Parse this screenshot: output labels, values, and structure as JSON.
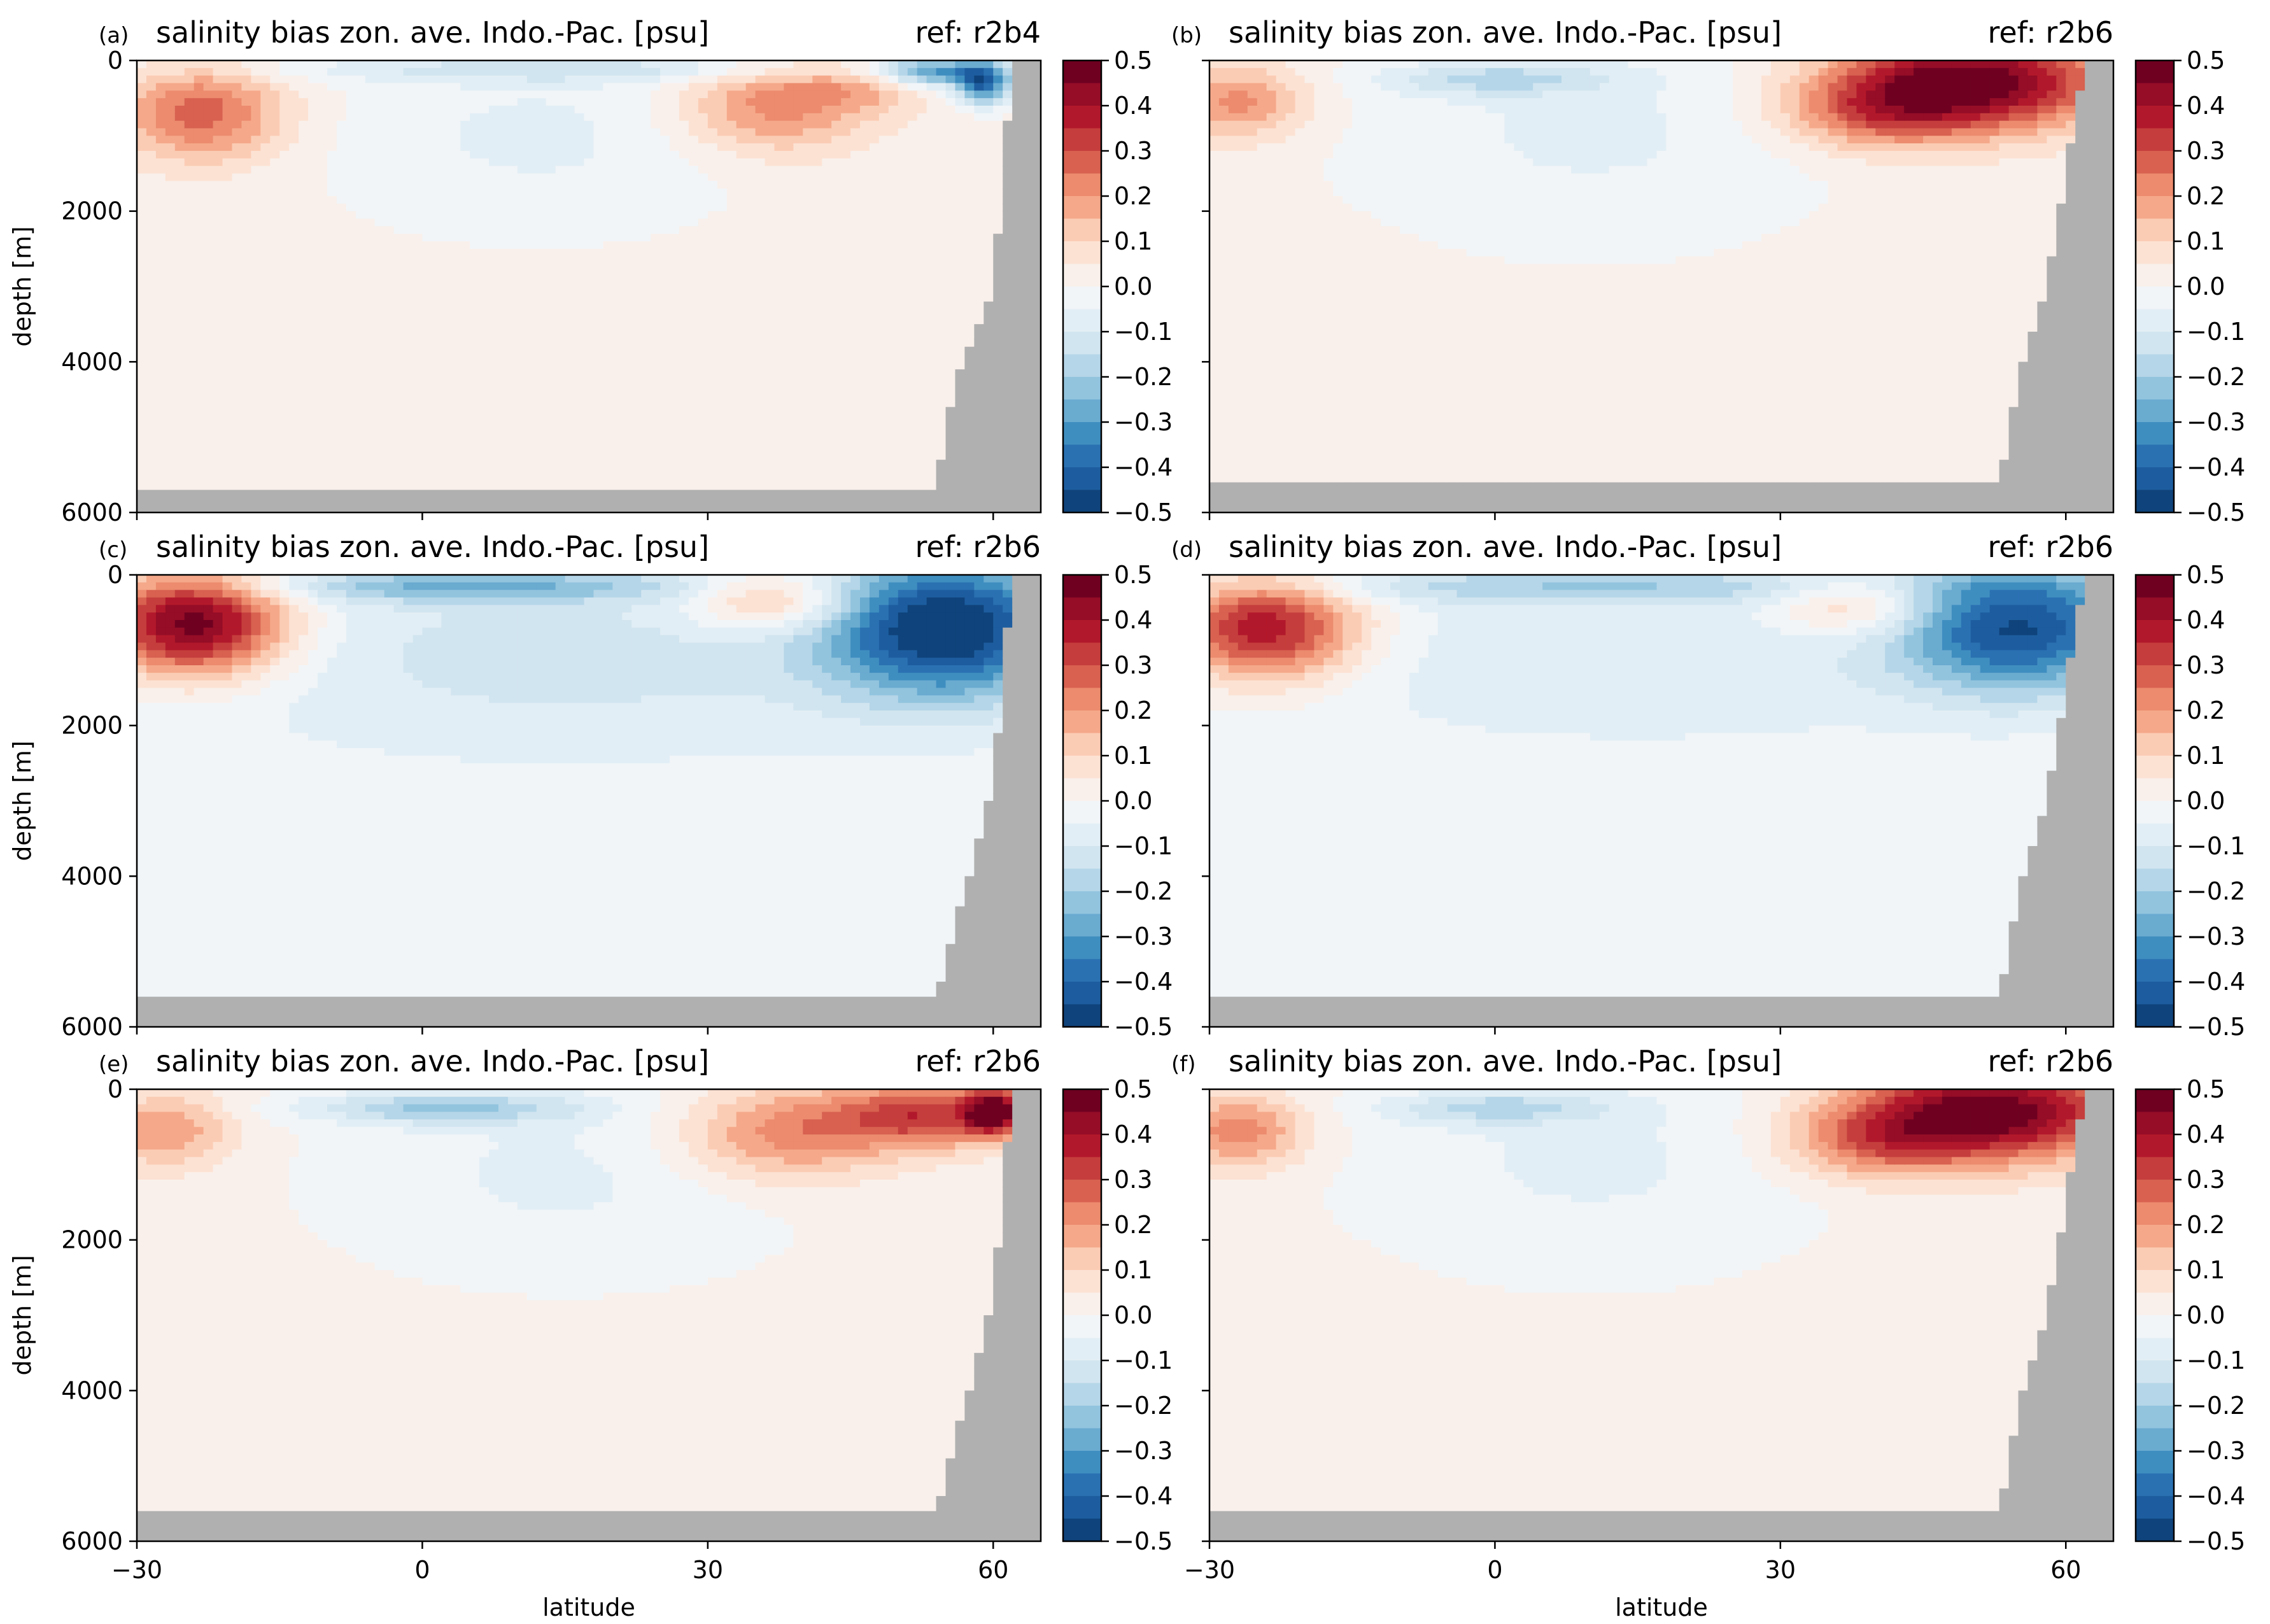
{
  "figure": {
    "panels": [
      {
        "label": "(a)",
        "title": "salinity bias zon. ave. Indo.-Pac. [psu]",
        "ref": "ref: r2b4"
      },
      {
        "label": "(b)",
        "title": "salinity bias zon. ave. Indo.-Pac. [psu]",
        "ref": "ref: r2b6"
      },
      {
        "label": "(c)",
        "title": "salinity bias zon. ave. Indo.-Pac. [psu]",
        "ref": "ref: r2b6"
      },
      {
        "label": "(d)",
        "title": "salinity bias zon. ave. Indo.-Pac. [psu]",
        "ref": "ref: r2b6"
      },
      {
        "label": "(e)",
        "title": "salinity bias zon. ave. Indo.-Pac. [psu]",
        "ref": "ref: r2b6"
      },
      {
        "label": "(f)",
        "title": "salinity bias zon. ave. Indo.-Pac. [psu]",
        "ref": "ref: r2b6"
      }
    ],
    "ylabel": "depth [m]",
    "xlabel": "latitude",
    "xticks": [
      "−30",
      "0",
      "30",
      "60"
    ],
    "yticks": [
      "0",
      "2000",
      "4000",
      "6000"
    ],
    "colorbar_ticks": [
      "0.5",
      "0.4",
      "0.3",
      "0.2",
      "0.1",
      "0.0",
      "−0.1",
      "−0.2",
      "−0.3",
      "−0.4",
      "−0.5"
    ],
    "land_color": "#b0b0b0"
  },
  "chart_data": {
    "type": "heatmap",
    "colormap": "RdBu_r",
    "levels": [
      -0.5,
      -0.45,
      -0.4,
      -0.35,
      -0.3,
      -0.25,
      -0.2,
      -0.15,
      -0.1,
      -0.05,
      0.0,
      0.05,
      0.1,
      0.15,
      0.2,
      0.25,
      0.3,
      0.35,
      0.4,
      0.45,
      0.5
    ],
    "level_colors": [
      "#0f437b",
      "#1d5d9f",
      "#2a71b2",
      "#3f8ec0",
      "#6aabd0",
      "#92c4de",
      "#b5d6e8",
      "#d1e5f0",
      "#e2eef5",
      "#f1f5f8",
      "#f9f0eb",
      "#fce2d3",
      "#fbccb4",
      "#f5a98a",
      "#ec8b6e",
      "#d86150",
      "#c53e3d",
      "#b2182b",
      "#950d27",
      "#6f0020"
    ],
    "xlim": [
      -30,
      65
    ],
    "ylim": [
      6000,
      0
    ],
    "x_unit": "latitude",
    "y_unit": "depth [m]",
    "panels": [
      {
        "label": "(a)",
        "land": {
          "bottom_depth": 5700,
          "coast": [
            [
              54,
              5700
            ],
            [
              56,
              4200
            ],
            [
              60,
              3000
            ],
            [
              62,
              0
            ]
          ]
        },
        "features": [
          {
            "x": -23,
            "y": 700,
            "sx": 6,
            "sy": 450,
            "v": 0.26
          },
          {
            "x": 37,
            "y": 600,
            "sx": 7,
            "sy": 450,
            "v": 0.22
          },
          {
            "x": 47,
            "y": 300,
            "sx": 5,
            "sy": 250,
            "v": 0.12
          },
          {
            "x": 12,
            "y": 1000,
            "sx": 16,
            "sy": 900,
            "v": -0.08
          },
          {
            "x": 20,
            "y": 120,
            "sx": 28,
            "sy": 120,
            "v": -0.12
          },
          {
            "x": 53,
            "y": 150,
            "sx": 4,
            "sy": 150,
            "v": -0.3
          },
          {
            "x": 59,
            "y": 300,
            "sx": 2,
            "sy": 200,
            "v": -0.4
          }
        ],
        "background": 0.02
      },
      {
        "label": "(b)",
        "land": {
          "bottom_depth": 5600,
          "coast": [
            [
              53,
              5600
            ],
            [
              55,
              4200
            ],
            [
              58,
              3000
            ],
            [
              62,
              0
            ]
          ]
        },
        "features": [
          {
            "x": -27,
            "y": 550,
            "sx": 5,
            "sy": 350,
            "v": 0.2
          },
          {
            "x": 50,
            "y": 280,
            "sx": 10,
            "sy": 450,
            "v": 0.48
          },
          {
            "x": 40,
            "y": 700,
            "sx": 7,
            "sy": 350,
            "v": 0.2
          },
          {
            "x": 10,
            "y": 900,
            "sx": 18,
            "sy": 1100,
            "v": -0.08
          },
          {
            "x": 0,
            "y": 250,
            "sx": 8,
            "sy": 150,
            "v": -0.15
          }
        ],
        "background": 0.02
      },
      {
        "label": "(c)",
        "land": {
          "bottom_depth": 5600,
          "coast": [
            [
              54,
              5600
            ],
            [
              57,
              4200
            ],
            [
              60,
              2800
            ],
            [
              62,
              0
            ]
          ]
        },
        "features": [
          {
            "x": -24,
            "y": 650,
            "sx": 7,
            "sy": 500,
            "v": 0.52
          },
          {
            "x": 37,
            "y": 350,
            "sx": 6,
            "sy": 280,
            "v": 0.22
          },
          {
            "x": 55,
            "y": 700,
            "sx": 9,
            "sy": 650,
            "v": -0.48
          },
          {
            "x": 5,
            "y": 150,
            "sx": 16,
            "sy": 150,
            "v": -0.2
          },
          {
            "x": 15,
            "y": 1100,
            "sx": 28,
            "sy": 900,
            "v": -0.1
          }
        ],
        "background": -0.02
      },
      {
        "label": "(d)",
        "land": {
          "bottom_depth": 5600,
          "coast": [
            [
              53,
              5600
            ],
            [
              55,
              4200
            ],
            [
              58,
              3000
            ],
            [
              62,
              0
            ]
          ]
        },
        "features": [
          {
            "x": -24,
            "y": 700,
            "sx": 7,
            "sy": 500,
            "v": 0.42
          },
          {
            "x": 38,
            "y": 400,
            "sx": 6,
            "sy": 300,
            "v": 0.18
          },
          {
            "x": 55,
            "y": 700,
            "sx": 9,
            "sy": 600,
            "v": -0.42
          },
          {
            "x": 10,
            "y": 150,
            "sx": 25,
            "sy": 160,
            "v": -0.15
          },
          {
            "x": 15,
            "y": 1100,
            "sx": 30,
            "sy": 900,
            "v": -0.08
          }
        ],
        "background": -0.01
      },
      {
        "label": "(e)",
        "land": {
          "bottom_depth": 5600,
          "coast": [
            [
              54,
              5600
            ],
            [
              57,
              4200
            ],
            [
              60,
              2800
            ],
            [
              62,
              0
            ]
          ]
        },
        "features": [
          {
            "x": -27,
            "y": 550,
            "sx": 5,
            "sy": 350,
            "v": 0.18
          },
          {
            "x": 38,
            "y": 600,
            "sx": 8,
            "sy": 450,
            "v": 0.22
          },
          {
            "x": 53,
            "y": 350,
            "sx": 7,
            "sy": 300,
            "v": 0.3
          },
          {
            "x": 60,
            "y": 300,
            "sx": 2,
            "sy": 200,
            "v": 0.42
          },
          {
            "x": 15,
            "y": 1100,
            "sx": 18,
            "sy": 1000,
            "v": -0.08
          },
          {
            "x": 2,
            "y": 250,
            "sx": 10,
            "sy": 150,
            "v": -0.2
          }
        ],
        "background": 0.02
      },
      {
        "label": "(f)",
        "land": {
          "bottom_depth": 5600,
          "coast": [
            [
              53,
              5600
            ],
            [
              55,
              4200
            ],
            [
              58,
              3000
            ],
            [
              62,
              0
            ]
          ]
        },
        "features": [
          {
            "x": -27,
            "y": 550,
            "sx": 5,
            "sy": 350,
            "v": 0.22
          },
          {
            "x": 52,
            "y": 300,
            "sx": 10,
            "sy": 450,
            "v": 0.48
          },
          {
            "x": 40,
            "y": 700,
            "sx": 7,
            "sy": 350,
            "v": 0.2
          },
          {
            "x": 10,
            "y": 900,
            "sx": 18,
            "sy": 1100,
            "v": -0.08
          },
          {
            "x": 0,
            "y": 250,
            "sx": 8,
            "sy": 150,
            "v": -0.15
          }
        ],
        "background": 0.02
      }
    ]
  }
}
